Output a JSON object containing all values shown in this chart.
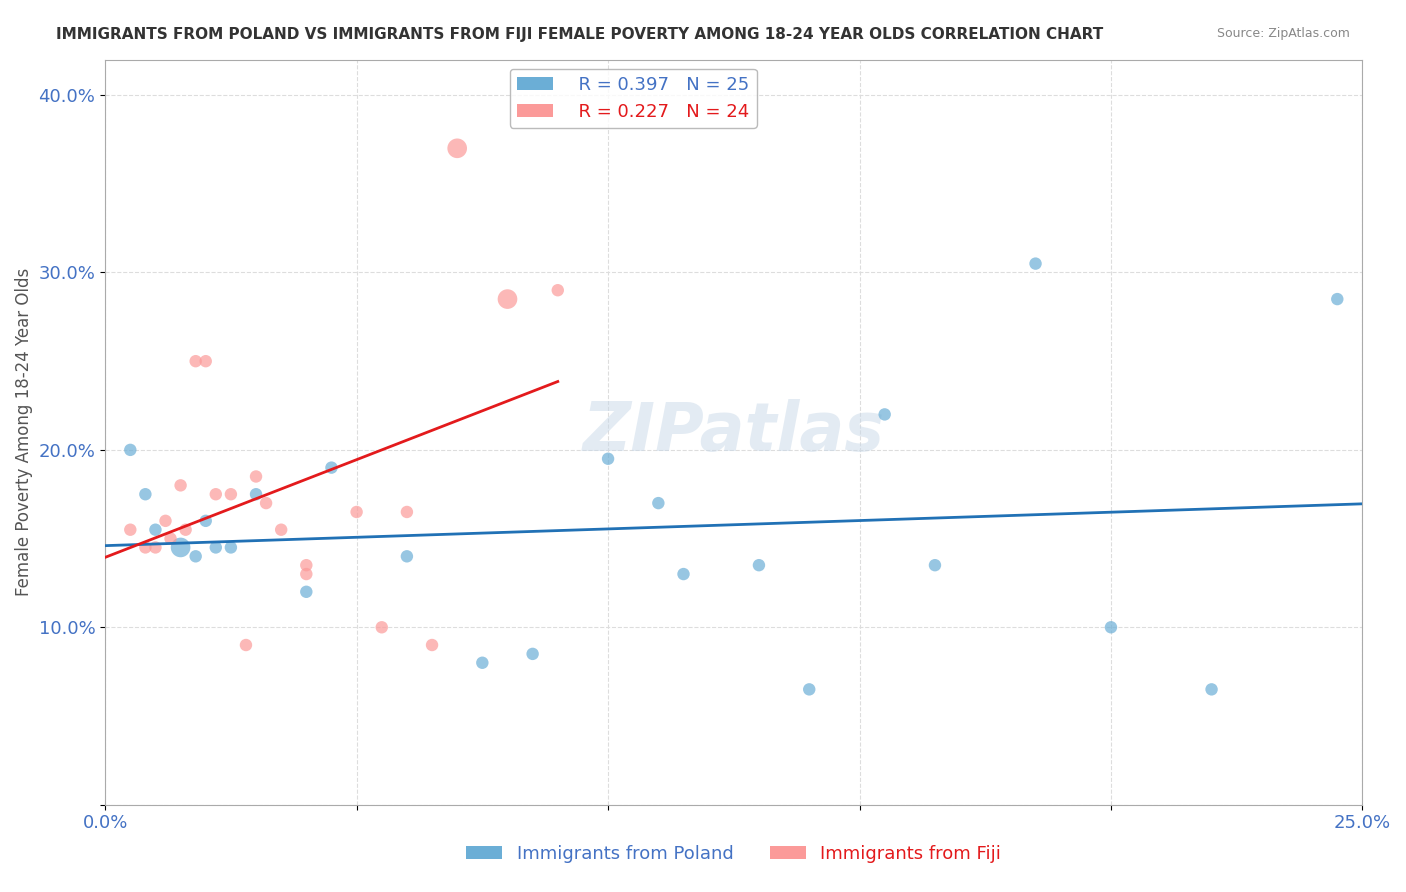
{
  "title": "IMMIGRANTS FROM POLAND VS IMMIGRANTS FROM FIJI FEMALE POVERTY AMONG 18-24 YEAR OLDS CORRELATION CHART",
  "source": "Source: ZipAtlas.com",
  "xlabel": "",
  "ylabel": "Female Poverty Among 18-24 Year Olds",
  "xlim": [
    0,
    0.25
  ],
  "ylim": [
    0,
    0.42
  ],
  "xticks": [
    0.0,
    0.05,
    0.1,
    0.15,
    0.2,
    0.25
  ],
  "yticks": [
    0.0,
    0.1,
    0.2,
    0.3,
    0.4
  ],
  "xticklabels": [
    "0.0%",
    "",
    "",
    "",
    "",
    "25.0%"
  ],
  "yticklabels": [
    "",
    "10.0%",
    "20.0%",
    "30.0%",
    "40.0%"
  ],
  "poland_color": "#6baed6",
  "fiji_color": "#fb9a99",
  "poland_line_color": "#2171b5",
  "fiji_line_color": "#e31a1c",
  "poland_R": "R = 0.397",
  "poland_N": "N = 25",
  "fiji_R": "R = 0.227",
  "fiji_N": "N = 24",
  "poland_x": [
    0.005,
    0.008,
    0.01,
    0.015,
    0.018,
    0.02,
    0.022,
    0.025,
    0.03,
    0.04,
    0.045,
    0.06,
    0.075,
    0.085,
    0.1,
    0.11,
    0.115,
    0.13,
    0.14,
    0.155,
    0.165,
    0.185,
    0.2,
    0.22,
    0.245
  ],
  "poland_y": [
    0.2,
    0.175,
    0.155,
    0.145,
    0.14,
    0.16,
    0.145,
    0.145,
    0.175,
    0.12,
    0.19,
    0.14,
    0.08,
    0.085,
    0.195,
    0.17,
    0.13,
    0.135,
    0.065,
    0.22,
    0.135,
    0.305,
    0.1,
    0.065,
    0.285
  ],
  "poland_size": [
    80,
    80,
    80,
    200,
    80,
    80,
    80,
    80,
    80,
    80,
    80,
    80,
    80,
    80,
    80,
    80,
    80,
    80,
    80,
    80,
    80,
    80,
    80,
    80,
    80
  ],
  "fiji_x": [
    0.005,
    0.008,
    0.01,
    0.012,
    0.013,
    0.015,
    0.016,
    0.018,
    0.02,
    0.022,
    0.025,
    0.028,
    0.03,
    0.032,
    0.035,
    0.04,
    0.04,
    0.05,
    0.055,
    0.06,
    0.065,
    0.07,
    0.08,
    0.09
  ],
  "fiji_y": [
    0.155,
    0.145,
    0.145,
    0.16,
    0.15,
    0.18,
    0.155,
    0.25,
    0.25,
    0.175,
    0.175,
    0.09,
    0.185,
    0.17,
    0.155,
    0.135,
    0.13,
    0.165,
    0.1,
    0.165,
    0.09,
    0.37,
    0.285,
    0.29
  ],
  "fiji_size": [
    80,
    80,
    80,
    80,
    80,
    80,
    80,
    80,
    80,
    80,
    80,
    80,
    80,
    80,
    80,
    80,
    80,
    80,
    80,
    80,
    80,
    200,
    200,
    80
  ],
  "watermark": "ZIPatlas",
  "background_color": "#ffffff",
  "grid_color": "#dddddd"
}
